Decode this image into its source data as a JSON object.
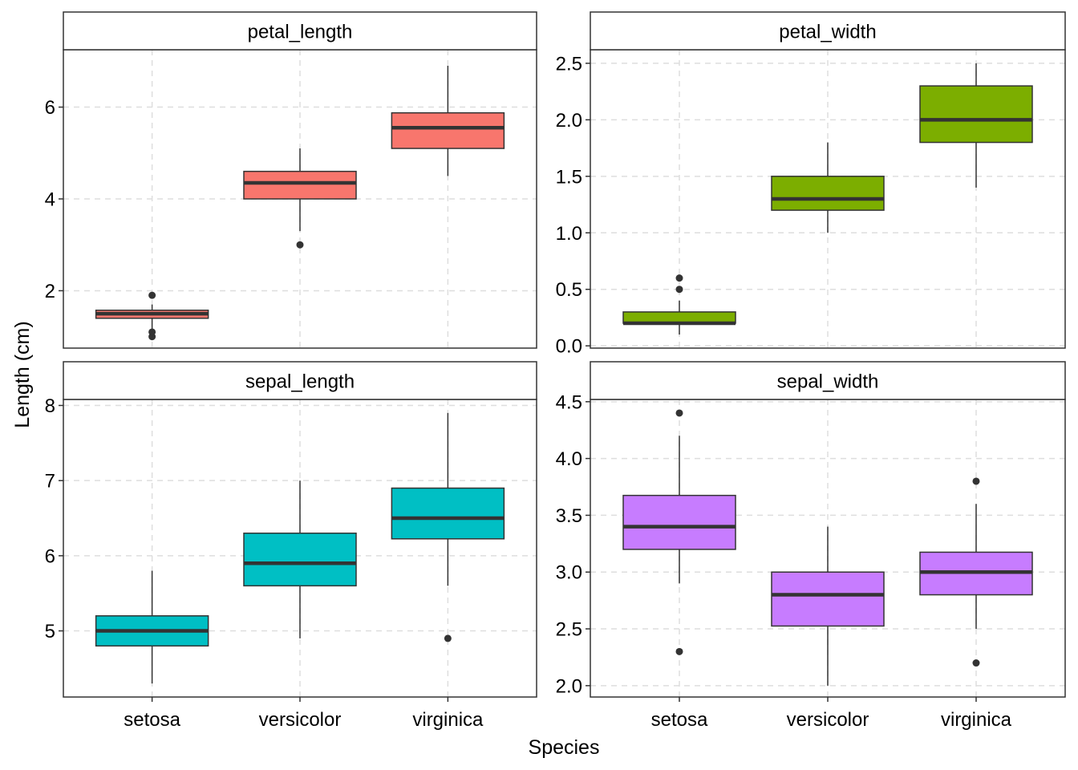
{
  "chart_data": {
    "type": "boxplot",
    "xlabel": "Species",
    "ylabel": "Length (cm)",
    "categories": [
      "setosa",
      "versicolor",
      "virginica"
    ],
    "panels": [
      {
        "title": "petal_length",
        "color": "#F8766D",
        "ylim": [
          0.75,
          7.25
        ],
        "yticks": [
          2,
          4,
          6
        ],
        "ytick_labels": [
          "2",
          "4",
          "6"
        ],
        "boxes": [
          {
            "category": "setosa",
            "min": 1.1,
            "q1": 1.4,
            "median": 1.5,
            "q3": 1.575,
            "max": 1.7,
            "outliers": [
              1.0,
              1.1,
              1.9
            ]
          },
          {
            "category": "versicolor",
            "min": 3.3,
            "q1": 4.0,
            "median": 4.35,
            "q3": 4.6,
            "max": 5.1,
            "outliers": [
              3.0
            ]
          },
          {
            "category": "virginica",
            "min": 4.5,
            "q1": 5.1,
            "median": 5.55,
            "q3": 5.875,
            "max": 6.9,
            "outliers": []
          }
        ]
      },
      {
        "title": "petal_width",
        "color": "#7CAE00",
        "ylim": [
          -0.02,
          2.62
        ],
        "yticks": [
          0.0,
          0.5,
          1.0,
          1.5,
          2.0,
          2.5
        ],
        "ytick_labels": [
          "0.0",
          "0.5",
          "1.0",
          "1.5",
          "2.0",
          "2.5"
        ],
        "boxes": [
          {
            "category": "setosa",
            "min": 0.1,
            "q1": 0.2,
            "median": 0.2,
            "q3": 0.3,
            "max": 0.4,
            "outliers": [
              0.5,
              0.6
            ]
          },
          {
            "category": "versicolor",
            "min": 1.0,
            "q1": 1.2,
            "median": 1.3,
            "q3": 1.5,
            "max": 1.8,
            "outliers": []
          },
          {
            "category": "virginica",
            "min": 1.4,
            "q1": 1.8,
            "median": 2.0,
            "q3": 2.3,
            "max": 2.5,
            "outliers": []
          }
        ]
      },
      {
        "title": "sepal_length",
        "color": "#00BFC4",
        "ylim": [
          4.12,
          8.08
        ],
        "yticks": [
          5,
          6,
          7,
          8
        ],
        "ytick_labels": [
          "5",
          "6",
          "7",
          "8"
        ],
        "boxes": [
          {
            "category": "setosa",
            "min": 4.3,
            "q1": 4.8,
            "median": 5.0,
            "q3": 5.2,
            "max": 5.8,
            "outliers": []
          },
          {
            "category": "versicolor",
            "min": 4.9,
            "q1": 5.6,
            "median": 5.9,
            "q3": 6.3,
            "max": 7.0,
            "outliers": []
          },
          {
            "category": "virginica",
            "min": 5.6,
            "q1": 6.225,
            "median": 6.5,
            "q3": 6.9,
            "max": 7.9,
            "outliers": [
              4.9
            ]
          }
        ]
      },
      {
        "title": "sepal_width",
        "color": "#C77CFF",
        "ylim": [
          1.9,
          4.52
        ],
        "yticks": [
          2.0,
          2.5,
          3.0,
          3.5,
          4.0,
          4.5
        ],
        "ytick_labels": [
          "2.0",
          "2.5",
          "3.0",
          "3.5",
          "4.0",
          "4.5"
        ],
        "boxes": [
          {
            "category": "setosa",
            "min": 2.9,
            "q1": 3.2,
            "median": 3.4,
            "q3": 3.675,
            "max": 4.2,
            "outliers": [
              4.4,
              2.3
            ]
          },
          {
            "category": "versicolor",
            "min": 2.0,
            "q1": 2.525,
            "median": 2.8,
            "q3": 3.0,
            "max": 3.4,
            "outliers": []
          },
          {
            "category": "virginica",
            "min": 2.5,
            "q1": 2.8,
            "median": 3.0,
            "q3": 3.175,
            "max": 3.6,
            "outliers": [
              3.8,
              2.2
            ]
          }
        ]
      }
    ]
  }
}
